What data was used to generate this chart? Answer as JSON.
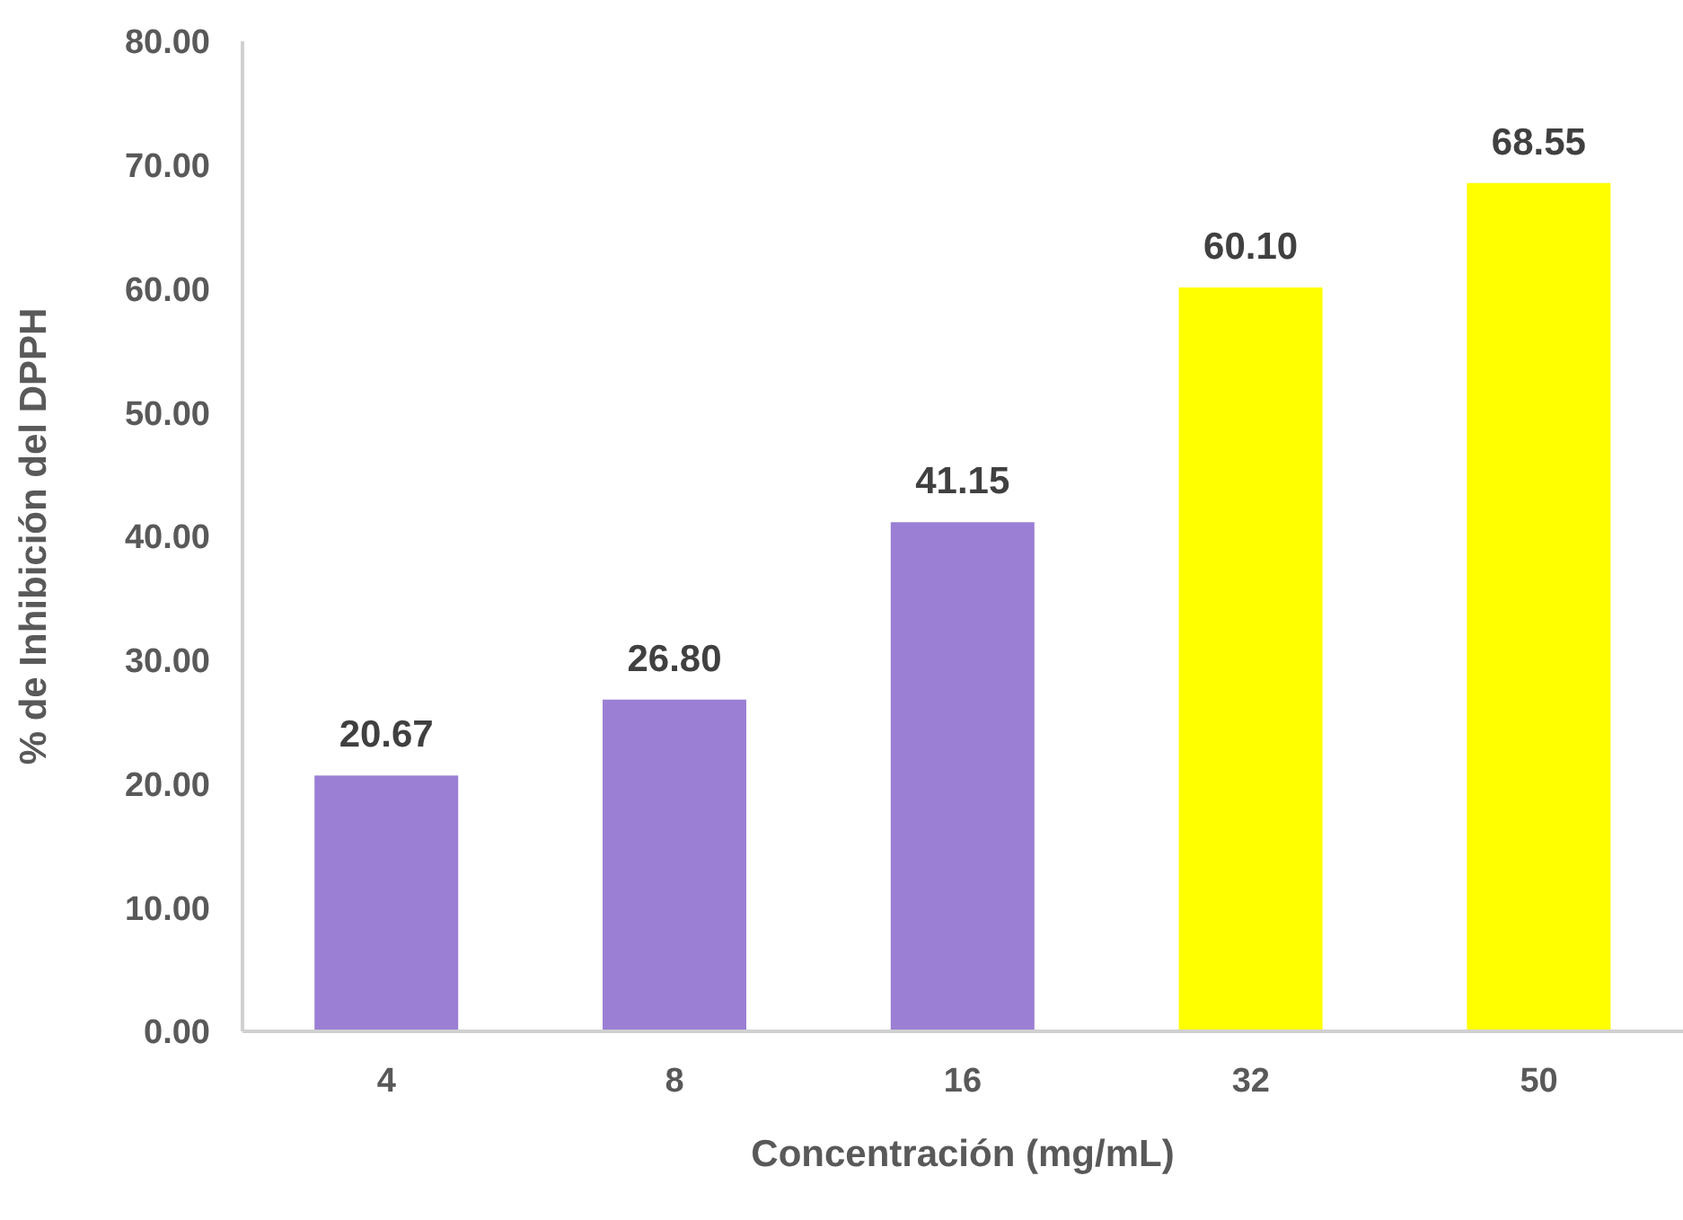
{
  "chart_data": {
    "type": "bar",
    "xlabel": "Concentración (mg/mL)",
    "ylabel": "% de Inhibición del DPPH",
    "categories": [
      "4",
      "8",
      "16",
      "32",
      "50"
    ],
    "values": [
      20.67,
      26.8,
      41.15,
      60.1,
      68.55
    ],
    "value_labels": [
      "20.67",
      "26.80",
      "41.15",
      "60.10",
      "68.55"
    ],
    "colors": [
      "#9b7fd4",
      "#9b7fd4",
      "#9b7fd4",
      "#ffff00",
      "#ffff00"
    ],
    "ylim": [
      0,
      80
    ],
    "yticks": [
      {
        "value": 0,
        "label": "0.00"
      },
      {
        "value": 10,
        "label": "10.00"
      },
      {
        "value": 20,
        "label": "20.00"
      },
      {
        "value": 30,
        "label": "30.00"
      },
      {
        "value": 40,
        "label": "40.00"
      },
      {
        "value": 50,
        "label": "50.00"
      },
      {
        "value": 60,
        "label": "60.00"
      },
      {
        "value": 70,
        "label": "70.00"
      },
      {
        "value": 80,
        "label": "80.00"
      }
    ],
    "grid": false,
    "legend": false
  }
}
